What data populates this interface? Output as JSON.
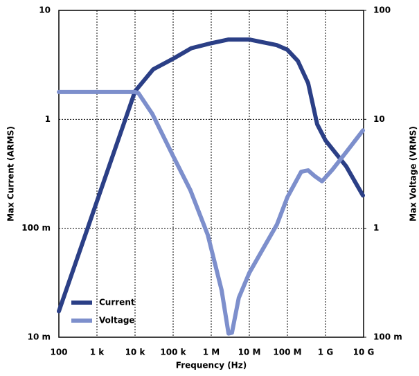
{
  "chart_data": {
    "type": "line",
    "x_label": "Frequency (Hz)",
    "y_label": "Max Current (ARMS)",
    "y2_label": "Max Voltage (VRMS)",
    "xscale": "log",
    "yscale": "log",
    "y2scale": "log",
    "grid": true,
    "legend": "lower left",
    "xlim": [
      100,
      10000000000
    ],
    "xticks": [
      100,
      {
        "value": 1000,
        "label": "1 k"
      },
      {
        "value": 10000,
        "label": "10 k"
      },
      {
        "value": 100000,
        "label": "100 k"
      },
      {
        "value": 1000000,
        "label": "1 M"
      },
      {
        "value": 10000000,
        "label": "10 M"
      },
      {
        "value": 100000000,
        "label": "100 M"
      },
      {
        "value": 1000000000,
        "label": "1 G"
      },
      {
        "value": 10000000000,
        "label": "10 G"
      }
    ],
    "ylim": [
      0.01,
      10
    ],
    "yticks": [
      {
        "value": 0.01,
        "label": "10 m"
      },
      {
        "value": 0.1,
        "label": "100 m"
      },
      1,
      10
    ],
    "y2lim": [
      0.1,
      100
    ],
    "y2ticks": [
      {
        "value": 0.1,
        "label": "100 m"
      },
      1,
      10,
      100
    ],
    "series": [
      {
        "name": "Current",
        "color": "#2b3f86",
        "x": [
          100,
          10000,
          30000,
          100000,
          300000,
          1000000,
          2850000,
          10000000,
          53000000,
          100000000,
          187000000,
          350000000,
          605000000,
          1000000000,
          3500000000,
          9600000000
        ],
        "values": [
          0.0173,
          1.81,
          2.88,
          3.6,
          4.5,
          5.0,
          5.4,
          5.4,
          4.8,
          4.35,
          3.44,
          2.15,
          0.9,
          0.64,
          0.37,
          0.2
        ]
      },
      {
        "name": "Voltage",
        "color": "#7d8fcc",
        "axis": "y2",
        "x": [
          100,
          10000,
          12300,
          28500,
          100000,
          285000,
          811000,
          1870000,
          2850000,
          3500000,
          5300000,
          10000000,
          23000000,
          53000000,
          100000000,
          230000000,
          350000000,
          530000000,
          810000000,
          1520000000,
          3500000000,
          9600000000
        ],
        "values": [
          17.8,
          17.8,
          17.4,
          11.2,
          4.6,
          2.23,
          0.87,
          0.27,
          0.108,
          0.11,
          0.23,
          0.39,
          0.65,
          1.08,
          1.93,
          3.3,
          3.4,
          3.0,
          2.7,
          3.45,
          5.0,
          7.9
        ]
      }
    ]
  }
}
